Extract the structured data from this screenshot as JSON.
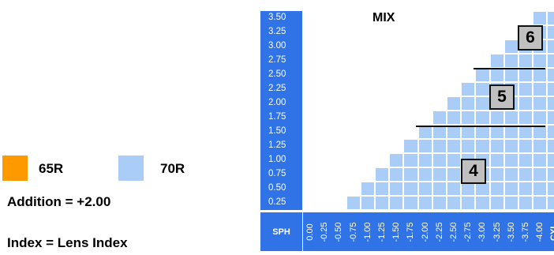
{
  "title": "MIX",
  "legend": [
    {
      "label": "65R",
      "color": "#ff9900"
    },
    {
      "label": "70R",
      "color": "#a9cdf7"
    }
  ],
  "addition_text": "Addition = +2.00",
  "index_text": "Index = Lens Index",
  "sph_header": "SPH",
  "cyl_header": "CYL",
  "sph_values": [
    "3.50",
    "3.25",
    "3.00",
    "2.75",
    "2.50",
    "2.25",
    "2.00",
    "1.75",
    "1.50",
    "1.25",
    "1.00",
    "0.75",
    "0.50",
    "0.25"
  ],
  "cyl_values": [
    "0.00",
    "-0.25",
    "-0.50",
    "-0.75",
    "-1.00",
    "-1.25",
    "-1.50",
    "-1.75",
    "-2.00",
    "-2.25",
    "-2.50",
    "-2.75",
    "-3.00",
    "-3.25",
    "-3.50",
    "-3.75",
    "-4.00"
  ],
  "zones": [
    "4",
    "5",
    "6"
  ],
  "colors": {
    "header_blue": "#2f73e6",
    "cell_blue": "#a9cdf7",
    "badge_gray": "#c0c0c0"
  }
}
